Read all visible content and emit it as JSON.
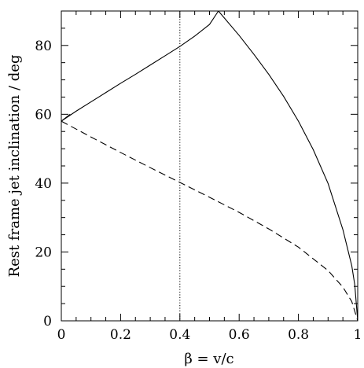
{
  "chart_data": {
    "type": "line",
    "title": "",
    "xlabel": "β = v/c",
    "ylabel": "Rest frame jet inclination / deg",
    "xlim": [
      0,
      1
    ],
    "ylim": [
      0,
      90
    ],
    "xticks": [
      0,
      0.2,
      0.4,
      0.6,
      0.8,
      1
    ],
    "xtick_labels": [
      "0",
      "0.2",
      "0.4",
      "0.6",
      "0.8",
      "1"
    ],
    "yticks": [
      0,
      20,
      40,
      60,
      80
    ],
    "ytick_labels": [
      "0",
      "20",
      "40",
      "60",
      "80"
    ],
    "grid": false,
    "legend": "none",
    "series": [
      {
        "style": "solid",
        "x": [
          0.0,
          0.05,
          0.1,
          0.15,
          0.2,
          0.25,
          0.3,
          0.35,
          0.4,
          0.45,
          0.5,
          0.53
        ],
        "y": [
          58.0,
          60.9,
          63.6,
          66.3,
          69.0,
          71.6,
          74.3,
          77.0,
          79.7,
          82.7,
          86.1,
          90.0
        ]
      },
      {
        "style": "solid",
        "x": [
          0.53,
          0.6,
          0.65,
          0.7,
          0.75,
          0.8,
          0.85,
          0.9,
          0.95,
          0.98,
          0.99,
          1.0
        ],
        "y": [
          90.0,
          82.9,
          77.4,
          71.6,
          65.2,
          58.0,
          49.7,
          39.9,
          26.5,
          16.0,
          10.5,
          0.0
        ]
      },
      {
        "style": "solid",
        "x": [
          0.0,
          0.03
        ],
        "y": [
          58.0,
          60.0
        ]
      },
      {
        "style": "dashed",
        "x": [
          0.0,
          0.1,
          0.2,
          0.3,
          0.4,
          0.5,
          0.6,
          0.7,
          0.8,
          0.9,
          0.95,
          0.98,
          1.0
        ],
        "y": [
          58.0,
          53.4,
          48.9,
          44.5,
          40.2,
          35.9,
          31.5,
          26.7,
          21.4,
          14.6,
          9.8,
          5.6,
          0.0
        ]
      }
    ],
    "reference_lines": [
      {
        "orientation": "vertical",
        "x": 0.4,
        "style": "dotted"
      }
    ]
  }
}
